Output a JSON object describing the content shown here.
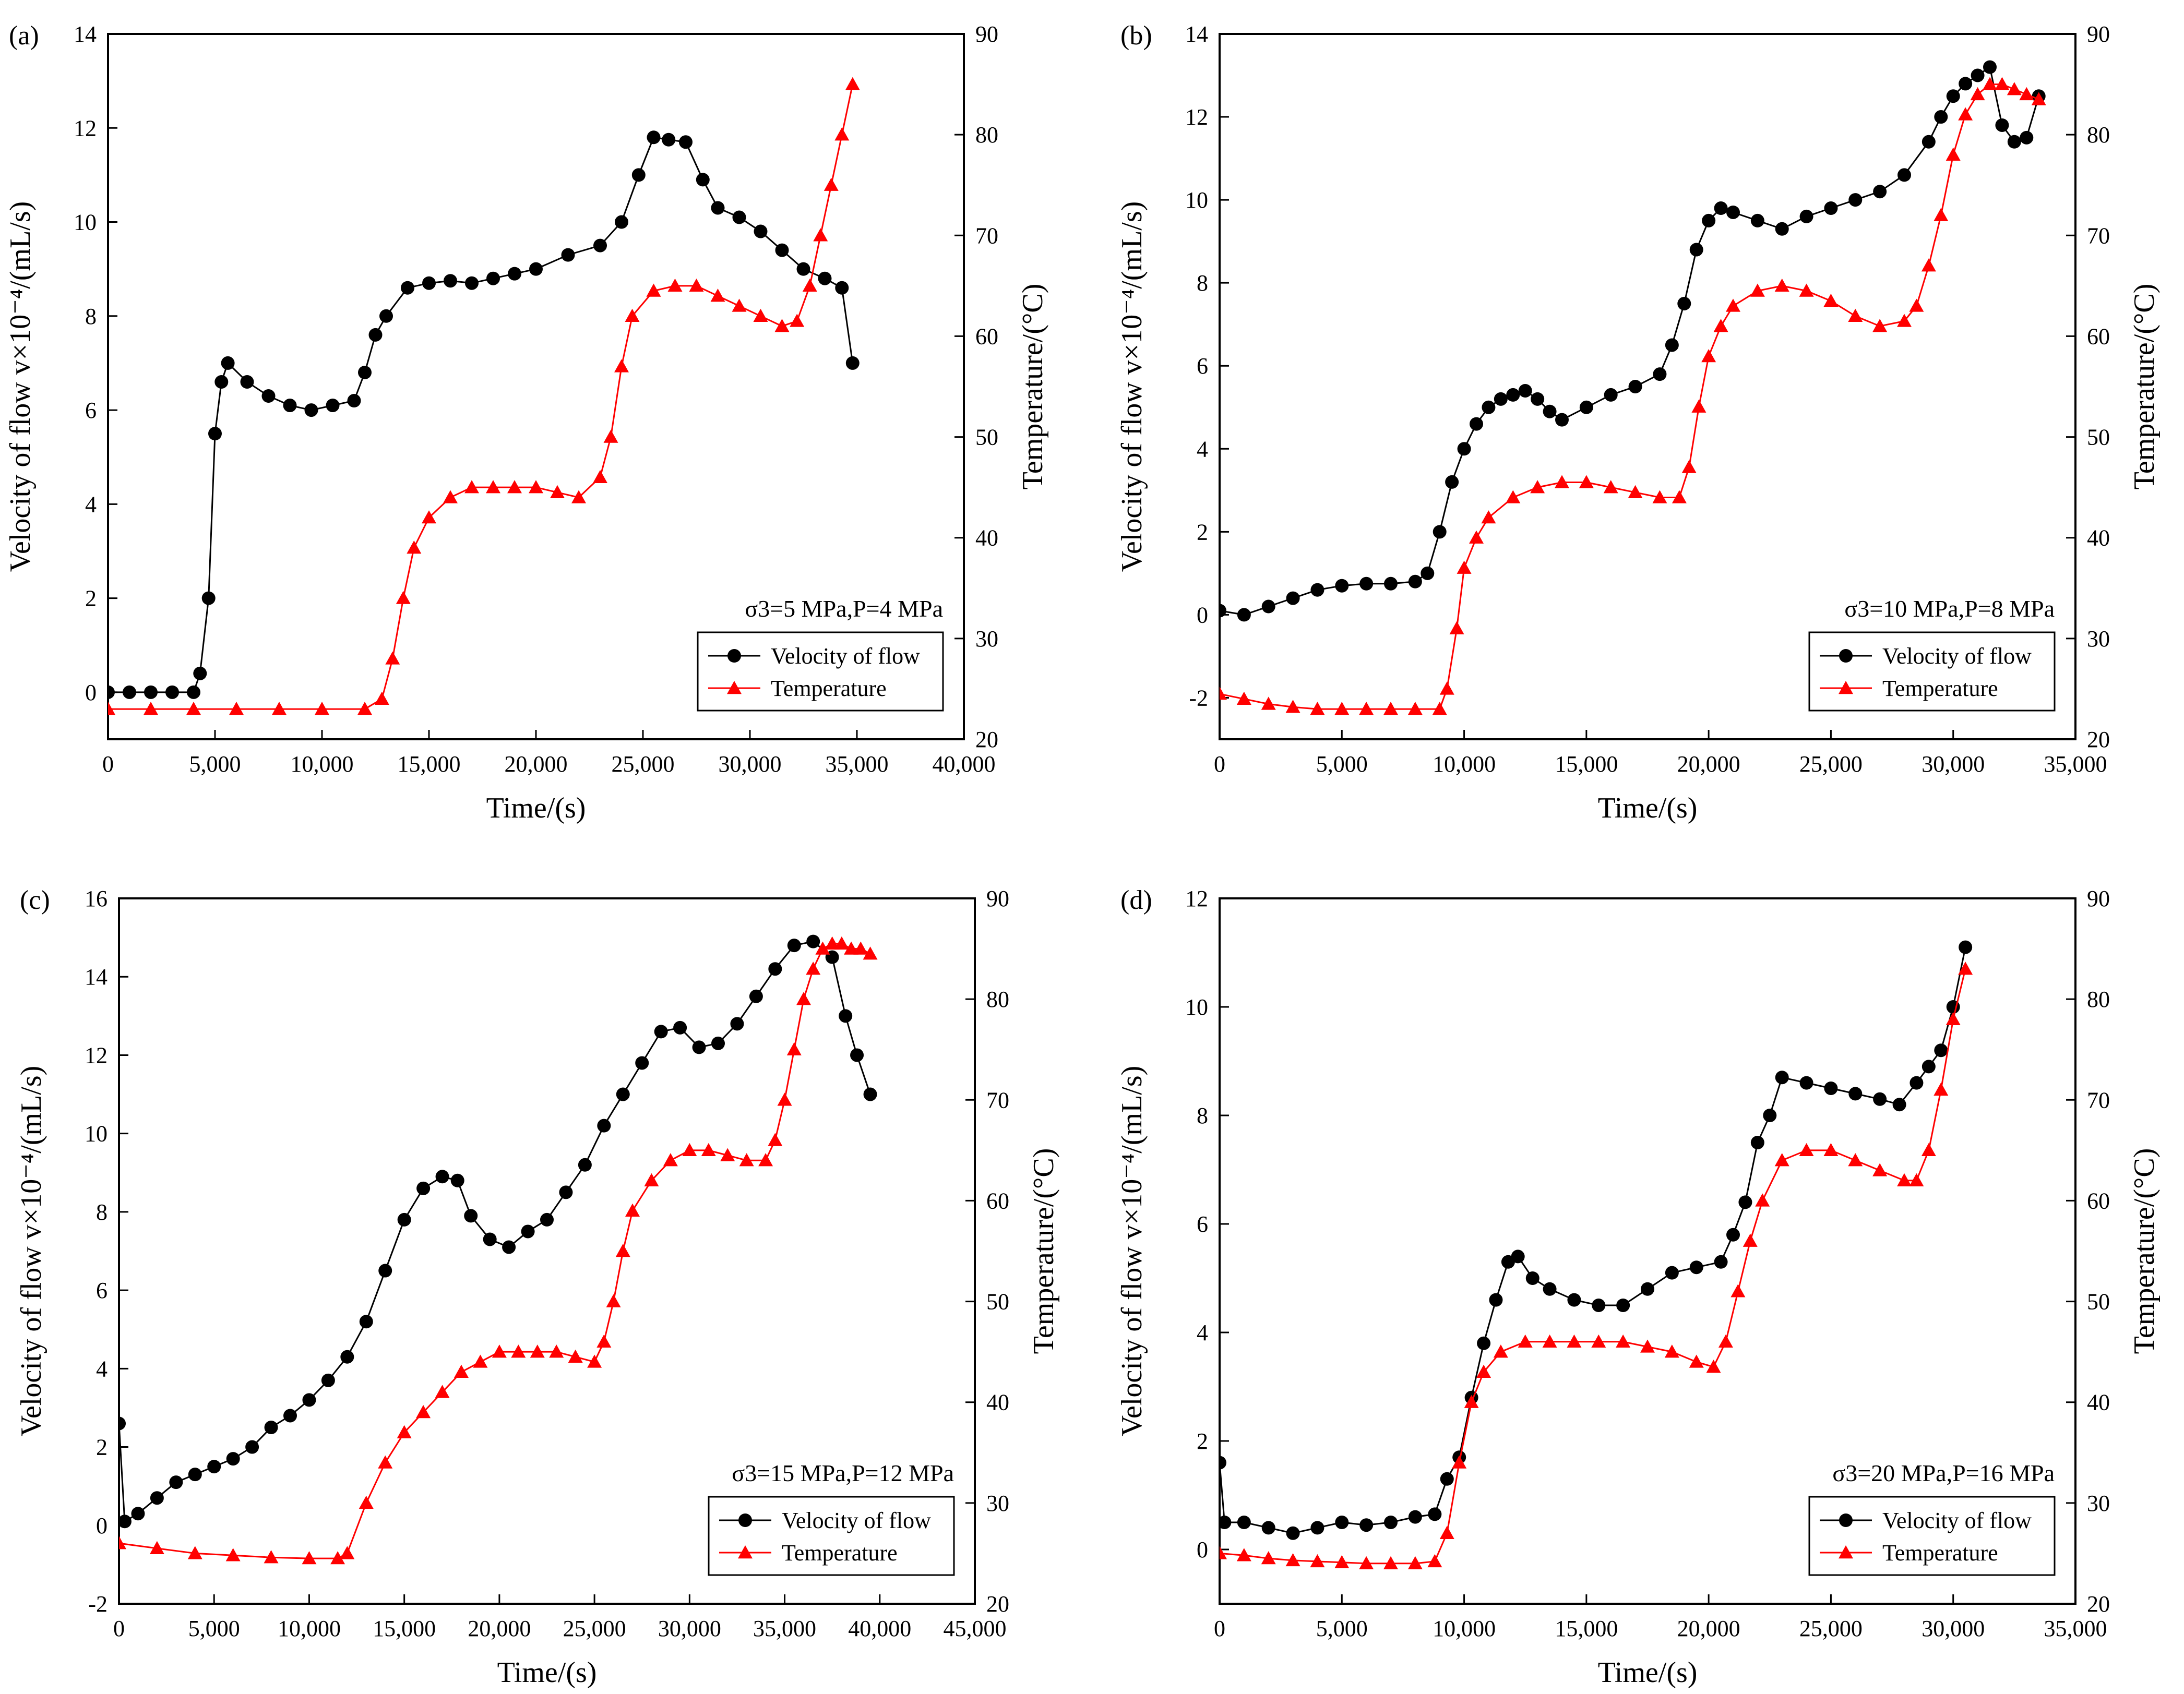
{
  "chart_data": [
    {
      "type": "line",
      "panel_label": "(a)",
      "xlabel": "Time/(s)",
      "ylabel_left": "Velocity of flow v×10⁻⁴/(mL/s)",
      "ylabel_right": "Temperature/(°C)",
      "annotation": "σ3=5 MPa,P=4 MPa",
      "legend_position": "lower-right",
      "xlim": [
        0,
        40000
      ],
      "xticks": [
        0,
        5000,
        10000,
        15000,
        20000,
        25000,
        30000,
        35000,
        40000
      ],
      "xtick_labels": [
        "0",
        "5,000",
        "10,000",
        "15,000",
        "20,000",
        "25,000",
        "30,000",
        "35,000",
        "40,000"
      ],
      "ylim_left": [
        -1,
        14
      ],
      "yticks_left": [
        0,
        2,
        4,
        6,
        8,
        10,
        12,
        14
      ],
      "ylim_right": [
        20,
        90
      ],
      "yticks_right": [
        20,
        30,
        40,
        50,
        60,
        70,
        80,
        90
      ],
      "series": [
        {
          "name": "Velocity of flow",
          "axis": "left",
          "color": "#000000",
          "marker": "circle",
          "x": [
            0,
            1000,
            2000,
            3000,
            4000,
            4300,
            4700,
            5000,
            5300,
            5600,
            6500,
            7500,
            8500,
            9500,
            10500,
            11500,
            12000,
            12500,
            13000,
            14000,
            15000,
            16000,
            17000,
            18000,
            19000,
            20000,
            21500,
            23000,
            24000,
            24800,
            25500,
            26200,
            27000,
            27800,
            28500,
            29500,
            30500,
            31500,
            32500,
            33500,
            34300,
            34800
          ],
          "y": [
            0,
            0,
            0,
            0,
            0,
            0.4,
            2.0,
            5.5,
            6.6,
            7.0,
            6.6,
            6.3,
            6.1,
            6.0,
            6.1,
            6.2,
            6.8,
            7.6,
            8.0,
            8.6,
            8.7,
            8.75,
            8.7,
            8.8,
            8.9,
            9.0,
            9.3,
            9.5,
            10.0,
            11.0,
            11.8,
            11.75,
            11.7,
            10.9,
            10.3,
            10.1,
            9.8,
            9.4,
            9.0,
            8.8,
            8.6,
            7.0
          ]
        },
        {
          "name": "Temperature",
          "axis": "right",
          "color": "#ff0000",
          "marker": "triangle",
          "x": [
            0,
            2000,
            4000,
            6000,
            8000,
            10000,
            12000,
            12800,
            13300,
            13800,
            14300,
            15000,
            16000,
            17000,
            18000,
            19000,
            20000,
            21000,
            22000,
            23000,
            23500,
            24000,
            24500,
            25500,
            26500,
            27500,
            28500,
            29500,
            30500,
            31500,
            32200,
            32800,
            33300,
            33800,
            34300,
            34800
          ],
          "y": [
            23,
            23,
            23,
            23,
            23,
            23,
            23,
            24,
            28,
            34,
            39,
            42,
            44,
            45,
            45,
            45,
            45,
            44.5,
            44,
            46,
            50,
            57,
            62,
            64.5,
            65,
            65,
            64,
            63,
            62,
            61,
            61.5,
            65,
            70,
            75,
            80,
            85
          ]
        }
      ]
    },
    {
      "type": "line",
      "panel_label": "(b)",
      "xlabel": "Time/(s)",
      "ylabel_left": "Velocity of flow v×10⁻⁴/(mL/s)",
      "ylabel_right": "Temperature/(°C)",
      "annotation": "σ3=10 MPa,P=8 MPa",
      "legend_position": "lower-right",
      "xlim": [
        0,
        35000
      ],
      "xticks": [
        0,
        5000,
        10000,
        15000,
        20000,
        25000,
        30000,
        35000
      ],
      "xtick_labels": [
        "0",
        "5,000",
        "10,000",
        "15,000",
        "20,000",
        "25,000",
        "30,000",
        "35,000"
      ],
      "ylim_left": [
        -3,
        14
      ],
      "yticks_left": [
        -2,
        0,
        2,
        4,
        6,
        8,
        10,
        12,
        14
      ],
      "ylim_right": [
        20,
        90
      ],
      "yticks_right": [
        20,
        30,
        40,
        50,
        60,
        70,
        80,
        90
      ],
      "series": [
        {
          "name": "Velocity of flow",
          "axis": "left",
          "color": "#000000",
          "marker": "circle",
          "x": [
            0,
            1000,
            2000,
            3000,
            4000,
            5000,
            6000,
            7000,
            8000,
            8500,
            9000,
            9500,
            10000,
            10500,
            11000,
            11500,
            12000,
            12500,
            13000,
            13500,
            14000,
            15000,
            16000,
            17000,
            18000,
            18500,
            19000,
            19500,
            20000,
            20500,
            21000,
            22000,
            23000,
            24000,
            25000,
            26000,
            27000,
            28000,
            29000,
            29500,
            30000,
            30500,
            31000,
            31500,
            32000,
            32500,
            33000,
            33500
          ],
          "y": [
            0.1,
            0,
            0.2,
            0.4,
            0.6,
            0.7,
            0.75,
            0.75,
            0.8,
            1.0,
            2.0,
            3.2,
            4.0,
            4.6,
            5.0,
            5.2,
            5.3,
            5.4,
            5.2,
            4.9,
            4.7,
            5.0,
            5.3,
            5.5,
            5.8,
            6.5,
            7.5,
            8.8,
            9.5,
            9.8,
            9.7,
            9.5,
            9.3,
            9.6,
            9.8,
            10.0,
            10.2,
            10.6,
            11.4,
            12.0,
            12.5,
            12.8,
            13.0,
            13.2,
            11.8,
            11.4,
            11.5,
            12.5
          ]
        },
        {
          "name": "Temperature",
          "axis": "right",
          "color": "#ff0000",
          "marker": "triangle",
          "x": [
            0,
            1000,
            2000,
            3000,
            4000,
            5000,
            6000,
            7000,
            8000,
            9000,
            9300,
            9700,
            10000,
            10500,
            11000,
            12000,
            13000,
            14000,
            15000,
            16000,
            17000,
            18000,
            18800,
            19200,
            19600,
            20000,
            20500,
            21000,
            22000,
            23000,
            24000,
            25000,
            26000,
            27000,
            28000,
            28500,
            29000,
            29500,
            30000,
            30500,
            31000,
            31500,
            32000,
            32500,
            33000,
            33500
          ],
          "y": [
            24.5,
            24,
            23.5,
            23.2,
            23,
            23,
            23,
            23,
            23,
            23,
            25,
            31,
            37,
            40,
            42,
            44,
            45,
            45.5,
            45.5,
            45,
            44.5,
            44,
            44,
            47,
            53,
            58,
            61,
            63,
            64.5,
            65,
            64.5,
            63.5,
            62,
            61,
            61.5,
            63,
            67,
            72,
            78,
            82,
            84,
            85,
            85,
            84.5,
            84,
            83.5
          ]
        }
      ]
    },
    {
      "type": "line",
      "panel_label": "(c)",
      "xlabel": "Time/(s)",
      "ylabel_left": "Velocity of flow v×10⁻⁴/(mL/s)",
      "ylabel_right": "Temperature/(°C)",
      "annotation": "σ3=15 MPa,P=12 MPa",
      "legend_position": "lower-right",
      "xlim": [
        0,
        45000
      ],
      "xticks": [
        0,
        5000,
        10000,
        15000,
        20000,
        25000,
        30000,
        35000,
        40000,
        45000
      ],
      "xtick_labels": [
        "0",
        "5,000",
        "10,000",
        "15,000",
        "20,000",
        "25,000",
        "30,000",
        "35,000",
        "40,000",
        "45,000"
      ],
      "ylim_left": [
        -2,
        16
      ],
      "yticks_left": [
        -2,
        0,
        2,
        4,
        6,
        8,
        10,
        12,
        14,
        16
      ],
      "ylim_right": [
        20,
        90
      ],
      "yticks_right": [
        20,
        30,
        40,
        50,
        60,
        70,
        80,
        90
      ],
      "series": [
        {
          "name": "Velocity of flow",
          "axis": "left",
          "color": "#000000",
          "marker": "circle",
          "x": [
            0,
            300,
            1000,
            2000,
            3000,
            4000,
            5000,
            6000,
            7000,
            8000,
            9000,
            10000,
            11000,
            12000,
            13000,
            14000,
            15000,
            16000,
            17000,
            17800,
            18500,
            19500,
            20500,
            21500,
            22500,
            23500,
            24500,
            25500,
            26500,
            27500,
            28500,
            29500,
            30500,
            31500,
            32500,
            33500,
            34500,
            35500,
            36500,
            37500,
            38200,
            38800,
            39500
          ],
          "y": [
            2.6,
            0.1,
            0.3,
            0.7,
            1.1,
            1.3,
            1.5,
            1.7,
            2.0,
            2.5,
            2.8,
            3.2,
            3.7,
            4.3,
            5.2,
            6.5,
            7.8,
            8.6,
            8.9,
            8.8,
            7.9,
            7.3,
            7.1,
            7.5,
            7.8,
            8.5,
            9.2,
            10.2,
            11.0,
            11.8,
            12.6,
            12.7,
            12.2,
            12.3,
            12.8,
            13.5,
            14.2,
            14.8,
            14.9,
            14.5,
            13.0,
            12.0,
            11.0
          ]
        },
        {
          "name": "Temperature",
          "axis": "right",
          "color": "#ff0000",
          "marker": "triangle",
          "x": [
            0,
            2000,
            4000,
            6000,
            8000,
            10000,
            11500,
            12000,
            13000,
            14000,
            15000,
            16000,
            17000,
            18000,
            19000,
            20000,
            21000,
            22000,
            23000,
            24000,
            25000,
            25500,
            26000,
            26500,
            27000,
            28000,
            29000,
            30000,
            31000,
            32000,
            33000,
            34000,
            34500,
            35000,
            35500,
            36000,
            36500,
            37000,
            37500,
            38000,
            38500,
            39000,
            39500
          ],
          "y": [
            26,
            25.5,
            25,
            24.8,
            24.6,
            24.5,
            24.5,
            25,
            30,
            34,
            37,
            39,
            41,
            43,
            44,
            45,
            45,
            45,
            45,
            44.5,
            44,
            46,
            50,
            55,
            59,
            62,
            64,
            65,
            65,
            64.5,
            64,
            64,
            66,
            70,
            75,
            80,
            83,
            85,
            85.5,
            85.5,
            85,
            85,
            84.5
          ]
        }
      ]
    },
    {
      "type": "line",
      "panel_label": "(d)",
      "xlabel": "Time/(s)",
      "ylabel_left": "Velocity of flow v×10⁻⁴/(mL/s)",
      "ylabel_right": "Temperature/(°C)",
      "annotation": "σ3=20 MPa,P=16 MPa",
      "legend_position": "lower-right",
      "xlim": [
        0,
        35000
      ],
      "xticks": [
        0,
        5000,
        10000,
        15000,
        20000,
        25000,
        30000,
        35000
      ],
      "xtick_labels": [
        "0",
        "5,000",
        "10,000",
        "15,000",
        "20,000",
        "25,000",
        "30,000",
        "35,000"
      ],
      "ylim_left": [
        -1,
        12
      ],
      "yticks_left": [
        0,
        2,
        4,
        6,
        8,
        10,
        12
      ],
      "ylim_right": [
        20,
        90
      ],
      "yticks_right": [
        20,
        30,
        40,
        50,
        60,
        70,
        80,
        90
      ],
      "series": [
        {
          "name": "Velocity of flow",
          "axis": "left",
          "color": "#000000",
          "marker": "circle",
          "x": [
            0,
            200,
            1000,
            2000,
            3000,
            4000,
            5000,
            6000,
            7000,
            8000,
            8800,
            9300,
            9800,
            10300,
            10800,
            11300,
            11800,
            12200,
            12800,
            13500,
            14500,
            15500,
            16500,
            17500,
            18500,
            19500,
            20500,
            21000,
            21500,
            22000,
            22500,
            23000,
            24000,
            25000,
            26000,
            27000,
            27800,
            28500,
            29000,
            29500,
            30000,
            30500
          ],
          "y": [
            1.6,
            0.5,
            0.5,
            0.4,
            0.3,
            0.4,
            0.5,
            0.45,
            0.5,
            0.6,
            0.65,
            1.3,
            1.7,
            2.8,
            3.8,
            4.6,
            5.3,
            5.4,
            5.0,
            4.8,
            4.6,
            4.5,
            4.5,
            4.8,
            5.1,
            5.2,
            5.3,
            5.8,
            6.4,
            7.5,
            8.0,
            8.7,
            8.6,
            8.5,
            8.4,
            8.3,
            8.2,
            8.6,
            8.9,
            9.2,
            10.0,
            11.1
          ]
        },
        {
          "name": "Temperature",
          "axis": "right",
          "color": "#ff0000",
          "marker": "triangle",
          "x": [
            0,
            1000,
            2000,
            3000,
            4000,
            5000,
            6000,
            7000,
            8000,
            8800,
            9300,
            9800,
            10300,
            10800,
            11500,
            12500,
            13500,
            14500,
            15500,
            16500,
            17500,
            18500,
            19500,
            20200,
            20700,
            21200,
            21700,
            22200,
            23000,
            24000,
            25000,
            26000,
            27000,
            28000,
            28500,
            29000,
            29500,
            30000,
            30500
          ],
          "y": [
            25,
            24.8,
            24.5,
            24.3,
            24.2,
            24.1,
            24.0,
            24.0,
            24.0,
            24.2,
            27,
            34,
            40,
            43,
            45,
            46,
            46,
            46,
            46,
            46,
            45.5,
            45,
            44,
            43.5,
            46,
            51,
            56,
            60,
            64,
            65,
            65,
            64,
            63,
            62,
            62,
            65,
            71,
            78,
            83
          ]
        }
      ]
    }
  ]
}
